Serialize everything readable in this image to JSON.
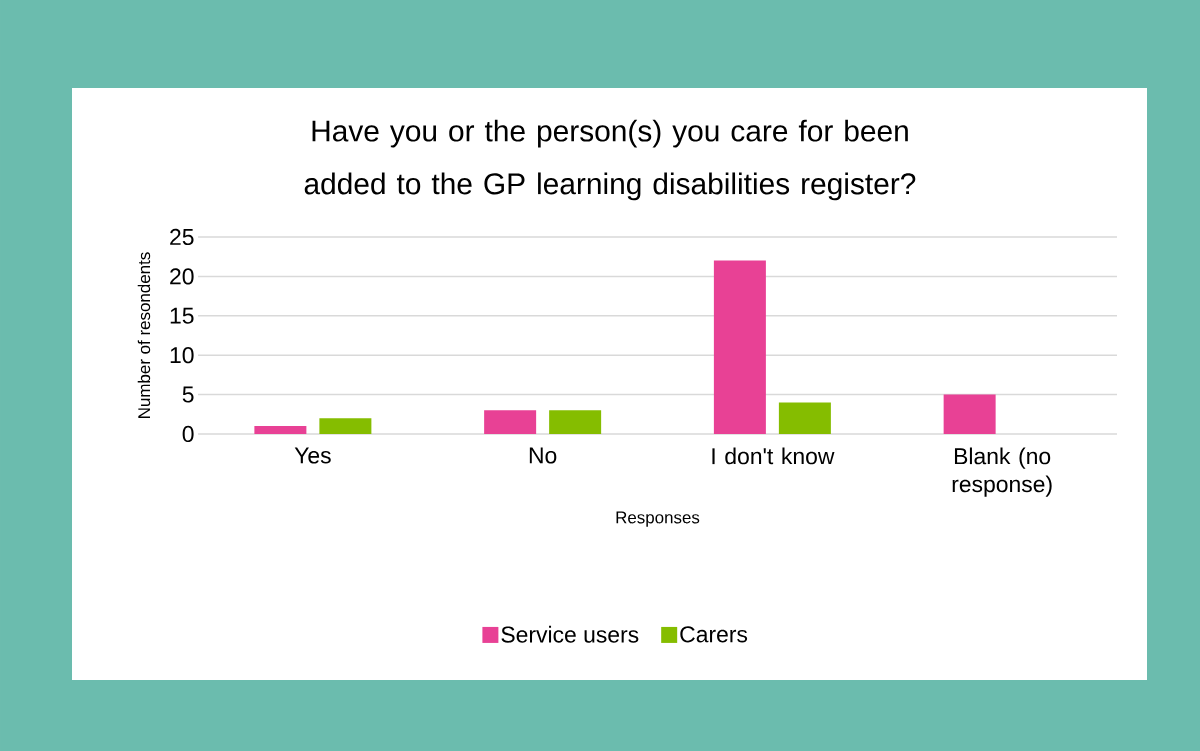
{
  "chart_data": {
    "type": "bar",
    "title": "Have you or the person(s) you care for been added to the GP learning disabilities register?",
    "xlabel": "Responses",
    "ylabel": "Number of resondents",
    "categories": [
      "Yes",
      "No",
      "I don't know",
      "Blank (no response)"
    ],
    "series": [
      {
        "name": "Service users",
        "color": "#e84195",
        "values": [
          1,
          3,
          22,
          5
        ]
      },
      {
        "name": "Carers",
        "color": "#85bd00",
        "values": [
          2,
          3,
          4,
          null
        ]
      }
    ],
    "ylim": [
      0,
      25
    ],
    "yticks": [
      0,
      5,
      10,
      15,
      20,
      25
    ],
    "grid": "y",
    "legend": "bottom"
  }
}
